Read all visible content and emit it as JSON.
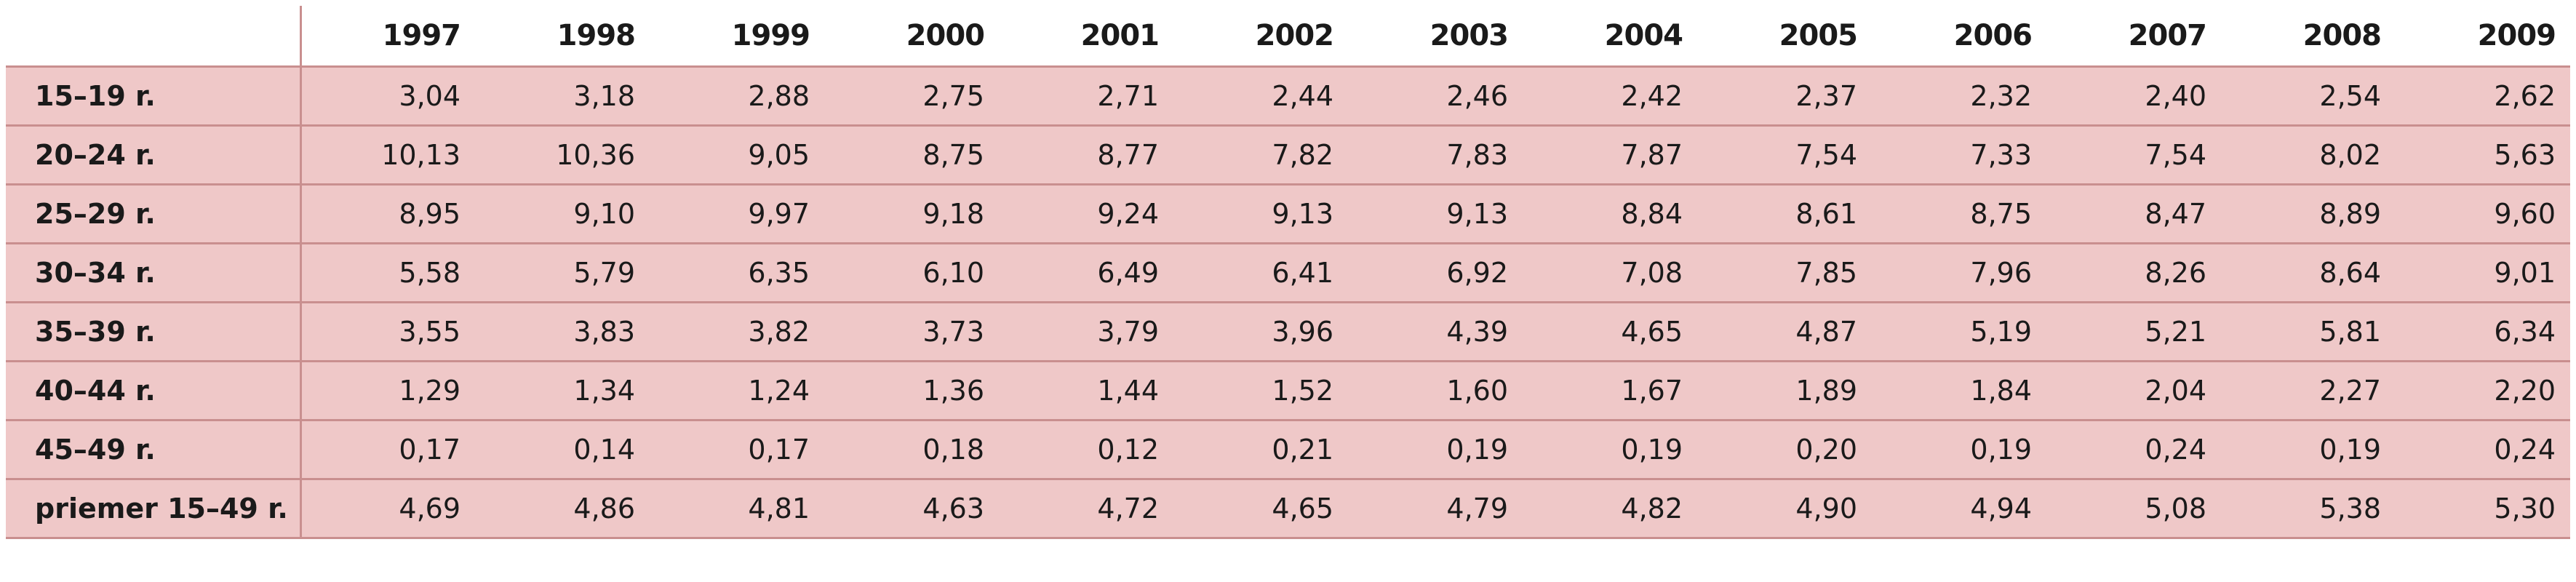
{
  "table": {
    "corner_label": "",
    "columns": [
      "1997",
      "1998",
      "1999",
      "2000",
      "2001",
      "2002",
      "2003",
      "2004",
      "2005",
      "2006",
      "2007",
      "2008",
      "2009"
    ],
    "rows": [
      {
        "label": "15–19 r.",
        "values": [
          "3,04",
          "3,18",
          "2,88",
          "2,75",
          "2,71",
          "2,44",
          "2,46",
          "2,42",
          "2,37",
          "2,32",
          "2,40",
          "2,54",
          "2,62"
        ]
      },
      {
        "label": "20–24 r.",
        "values": [
          "10,13",
          "10,36",
          "9,05",
          "8,75",
          "8,77",
          "7,82",
          "7,83",
          "7,87",
          "7,54",
          "7,33",
          "7,54",
          "8,02",
          "5,63"
        ]
      },
      {
        "label": "25–29 r.",
        "values": [
          "8,95",
          "9,10",
          "9,97",
          "9,18",
          "9,24",
          "9,13",
          "9,13",
          "8,84",
          "8,61",
          "8,75",
          "8,47",
          "8,89",
          "9,60"
        ]
      },
      {
        "label": "30–34 r.",
        "values": [
          "5,58",
          "5,79",
          "6,35",
          "6,10",
          "6,49",
          "6,41",
          "6,92",
          "7,08",
          "7,85",
          "7,96",
          "8,26",
          "8,64",
          "9,01"
        ]
      },
      {
        "label": "35–39 r.",
        "values": [
          "3,55",
          "3,83",
          "3,82",
          "3,73",
          "3,79",
          "3,96",
          "4,39",
          "4,65",
          "4,87",
          "5,19",
          "5,21",
          "5,81",
          "6,34"
        ]
      },
      {
        "label": "40–44 r.",
        "values": [
          "1,29",
          "1,34",
          "1,24",
          "1,36",
          "1,44",
          "1,52",
          "1,60",
          "1,67",
          "1,89",
          "1,84",
          "2,04",
          "2,27",
          "2,20"
        ]
      },
      {
        "label": "45–49 r.",
        "values": [
          "0,17",
          "0,14",
          "0,17",
          "0,18",
          "0,12",
          "0,21",
          "0,19",
          "0,19",
          "0,20",
          "0,19",
          "0,24",
          "0,19",
          "0,24"
        ]
      },
      {
        "label": "priemer 15–49 r.",
        "values": [
          "4,69",
          "4,86",
          "4,81",
          "4,63",
          "4,72",
          "4,65",
          "4,79",
          "4,82",
          "4,90",
          "4,94",
          "5,08",
          "5,38",
          "5,30"
        ]
      }
    ]
  },
  "colors": {
    "row_background": "#efc8c8",
    "header_background": "#ffffff",
    "rule": "#c98f8f"
  }
}
